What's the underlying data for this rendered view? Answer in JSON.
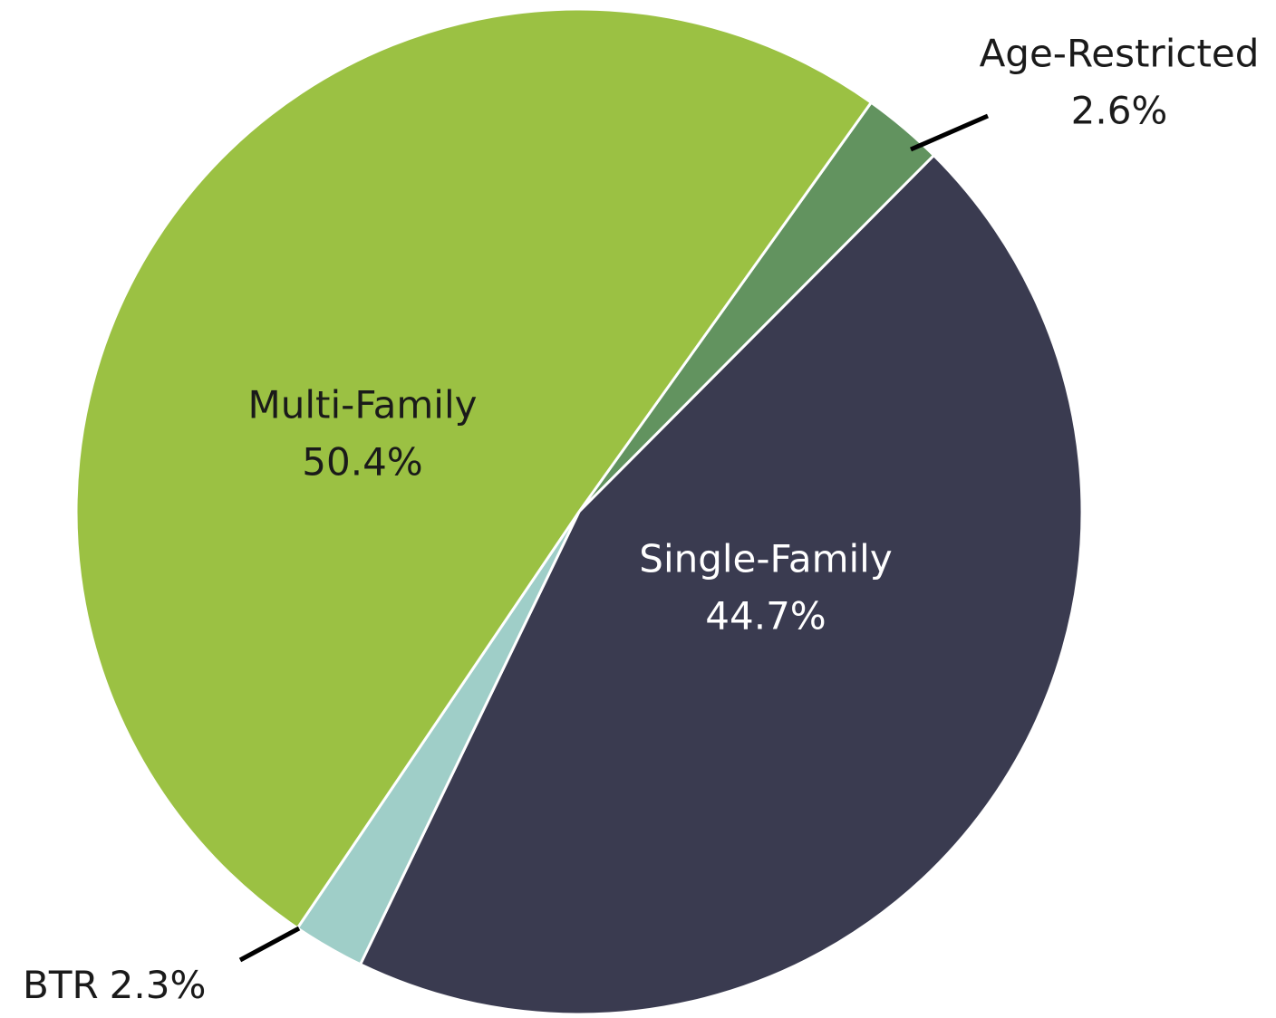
{
  "chart_data": {
    "type": "pie",
    "categories": [
      "Age-Restricted",
      "Single-Family",
      "BTR",
      "Multi-Family"
    ],
    "values": [
      2.6,
      44.7,
      2.3,
      50.4
    ],
    "value_labels": [
      "2.6%",
      "44.7%",
      "2.3%",
      "50.4%"
    ],
    "colors": [
      "#62935f",
      "#3a3b50",
      "#9fcec8",
      "#9bc143"
    ]
  }
}
